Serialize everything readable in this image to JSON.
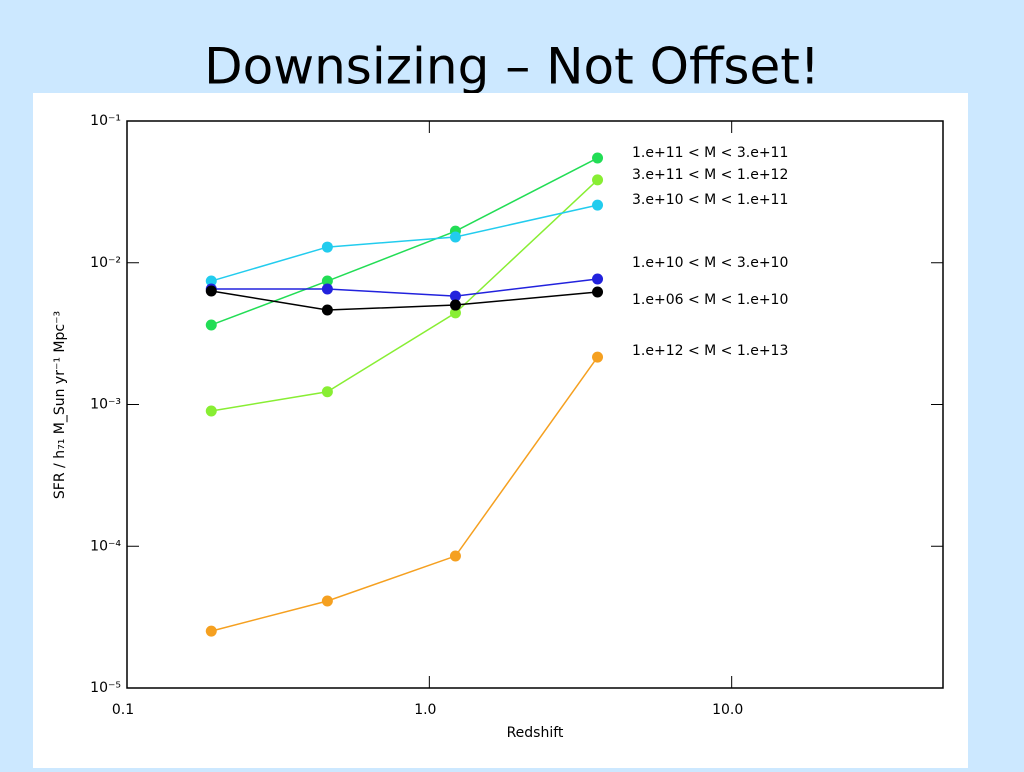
{
  "chart_data": {
    "type": "line",
    "title": "Downsizing – Not Offset!",
    "x_label": "Redshift",
    "y_label": "SFR / h₇₁ M_Sun yr⁻¹ Mpc⁻³",
    "x": [
      0.19,
      0.46,
      1.22,
      3.6
    ],
    "xscale": "log",
    "yscale": "log",
    "xlim": [
      0.1,
      50
    ],
    "ylim": [
      1e-05,
      0.1
    ],
    "xticks": [
      0.1,
      {
        "value": 1,
        "label": "1.0"
      },
      {
        "value": 10,
        "label": "10.0"
      }
    ],
    "yticks": [
      {
        "value": 1e-05,
        "label": "10⁻⁵"
      },
      {
        "value": 0.0001,
        "label": "10⁻⁴"
      },
      {
        "value": 0.001,
        "label": "10⁻³"
      },
      {
        "value": 0.01,
        "label": "10⁻²"
      },
      {
        "value": 0.1,
        "label": "10⁻¹"
      }
    ],
    "series": [
      {
        "name": "1.e+11 < M < 3.e+11",
        "color": "#22dd55",
        "values": [
          0.00364,
          0.00743,
          0.0167,
          0.0548
        ]
      },
      {
        "name": "3.e+11 < M < 1.e+12",
        "color": "#88ee33",
        "values": [
          0.0009,
          0.00123,
          0.00443,
          0.0384
        ]
      },
      {
        "name": "3.e+10 < M < 1.e+11",
        "color": "#22ccee",
        "values": [
          0.00743,
          0.0129,
          0.0152,
          0.0255
        ]
      },
      {
        "name": "1.e+10 < M < 3.e+10",
        "color": "#2222dd",
        "values": [
          0.00653,
          0.00653,
          0.00582,
          0.00768
        ]
      },
      {
        "name": "1.e+06 < M < 1.e+10",
        "color": "#000000",
        "values": [
          0.00632,
          0.00464,
          0.00503,
          0.00622
        ]
      },
      {
        "name": "1.e+12 < M < 1.e+13",
        "color": "#f5a020",
        "values": [
          2.52e-05,
          4.11e-05,
          8.53e-05,
          0.00216
        ]
      }
    ]
  }
}
